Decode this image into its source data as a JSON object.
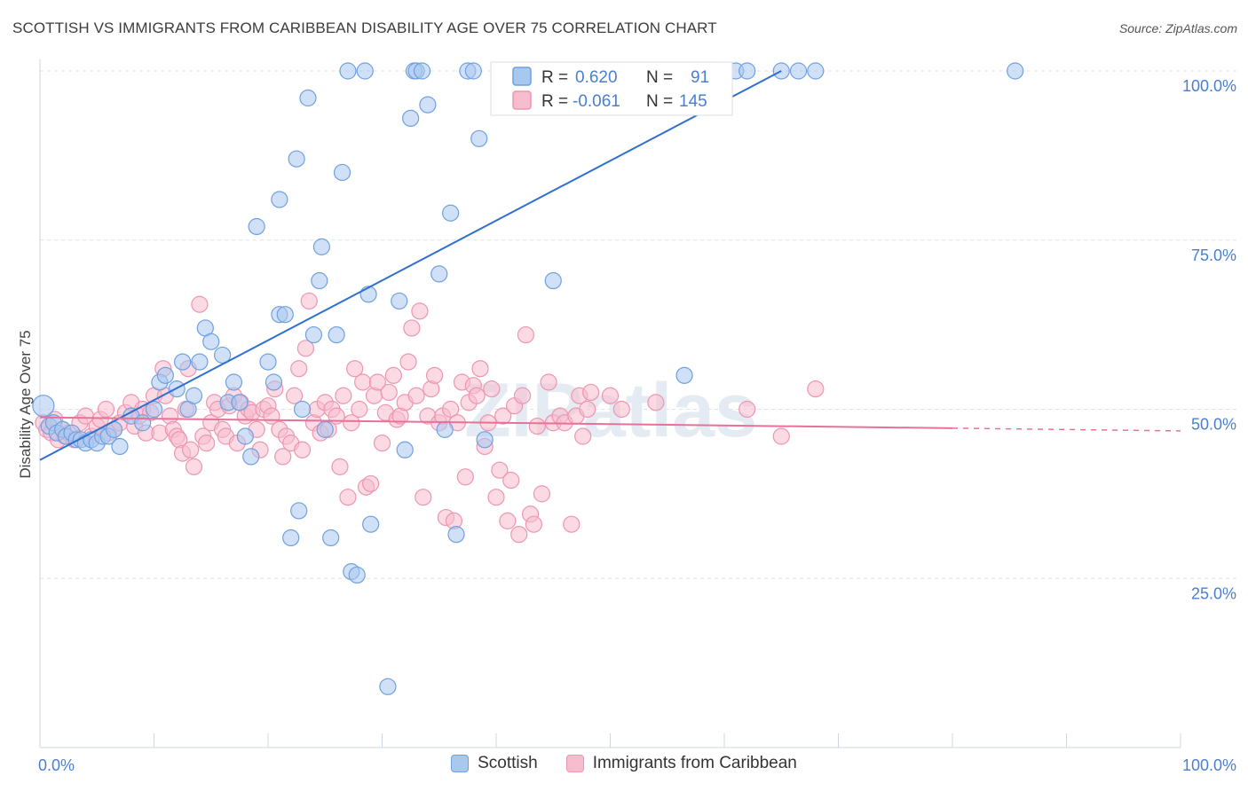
{
  "header": {
    "title": "SCOTTISH VS IMMIGRANTS FROM CARIBBEAN DISABILITY AGE OVER 75 CORRELATION CHART",
    "source": "Source: ZipAtlas.com"
  },
  "watermark": "ZIPatlas",
  "stats": [
    {
      "r_label": "R =",
      "r_value": "0.620",
      "n_label": "N =",
      "n_value": "91"
    },
    {
      "r_label": "R =",
      "r_value": "-0.061",
      "n_label": "N =",
      "n_value": "145"
    }
  ],
  "colors": {
    "scottish_fill": "#a9c8f0",
    "scottish_stroke": "#6fa0e0",
    "scottish_line": "#2f6fcf",
    "caribbean_fill": "#f7bccd",
    "caribbean_stroke": "#ee95b0",
    "caribbean_line": "#e8719a",
    "tick_text": "#4a7fd0",
    "grid": "#dde2e8"
  },
  "chart_data": {
    "type": "scatter",
    "title": "SCOTTISH VS IMMIGRANTS FROM CARIBBEAN DISABILITY AGE OVER 75 CORRELATION CHART",
    "xlabel": "",
    "ylabel": "Disability Age Over 75",
    "xlim": [
      0,
      100
    ],
    "ylim": [
      0,
      100
    ],
    "x_tick_labels": [
      "0.0%",
      "100.0%"
    ],
    "y_tick_labels": [
      "100.0%",
      "75.0%",
      "50.0%",
      "25.0%"
    ],
    "y_ticks": [
      100,
      75,
      50,
      25
    ],
    "grid": true,
    "legend_position": "bottom",
    "series": [
      {
        "name": "Scottish",
        "r": 0.62,
        "n": 91,
        "trend": {
          "x0": 0,
          "y0": 42.5,
          "x1": 65,
          "y1": 100
        },
        "points": [
          [
            0.3,
            50.5
          ],
          [
            0.8,
            47.5
          ],
          [
            1.2,
            48
          ],
          [
            1.5,
            46.5
          ],
          [
            2,
            47
          ],
          [
            2.3,
            46
          ],
          [
            2.8,
            46.5
          ],
          [
            3.2,
            45.5
          ],
          [
            3.6,
            45.5
          ],
          [
            4,
            45
          ],
          [
            4.5,
            45.5
          ],
          [
            5,
            45
          ],
          [
            5.5,
            46
          ],
          [
            6,
            46
          ],
          [
            6.5,
            47
          ],
          [
            7,
            44.5
          ],
          [
            8,
            49
          ],
          [
            9,
            48
          ],
          [
            10,
            50
          ],
          [
            10.5,
            54
          ],
          [
            11,
            55
          ],
          [
            12,
            53
          ],
          [
            12.5,
            57
          ],
          [
            13,
            50
          ],
          [
            13.5,
            52
          ],
          [
            14,
            57
          ],
          [
            14.5,
            62
          ],
          [
            15,
            60
          ],
          [
            16,
            58
          ],
          [
            16.5,
            51
          ],
          [
            17,
            54
          ],
          [
            17.5,
            51
          ],
          [
            18,
            46
          ],
          [
            18.5,
            43
          ],
          [
            19,
            77
          ],
          [
            20,
            57
          ],
          [
            20.5,
            54
          ],
          [
            21,
            64
          ],
          [
            21.5,
            64
          ],
          [
            21,
            81
          ],
          [
            22,
            31
          ],
          [
            22.5,
            87
          ],
          [
            22.7,
            35
          ],
          [
            23,
            50
          ],
          [
            23.5,
            96
          ],
          [
            24,
            61
          ],
          [
            24.5,
            69
          ],
          [
            24.7,
            74
          ],
          [
            25,
            47
          ],
          [
            25.5,
            31
          ],
          [
            26,
            61
          ],
          [
            26.5,
            85
          ],
          [
            27,
            100
          ],
          [
            27.3,
            26
          ],
          [
            27.8,
            25.5
          ],
          [
            28.5,
            100
          ],
          [
            28.8,
            67
          ],
          [
            29,
            33
          ],
          [
            30.5,
            9
          ],
          [
            31.5,
            66
          ],
          [
            32,
            44
          ],
          [
            32.5,
            93
          ],
          [
            32.8,
            100
          ],
          [
            33,
            100
          ],
          [
            33.5,
            100
          ],
          [
            34,
            95
          ],
          [
            35,
            70
          ],
          [
            35.5,
            47
          ],
          [
            36,
            79
          ],
          [
            36.5,
            31.5
          ],
          [
            37.5,
            100
          ],
          [
            38,
            100
          ],
          [
            38.5,
            90
          ],
          [
            39,
            45.5
          ],
          [
            41,
            100
          ],
          [
            42,
            100
          ],
          [
            44,
            100
          ],
          [
            45,
            69
          ],
          [
            47,
            100
          ],
          [
            48,
            100
          ],
          [
            49,
            100
          ],
          [
            50,
            100
          ],
          [
            51,
            100
          ],
          [
            56.5,
            55
          ],
          [
            58,
            100
          ],
          [
            61,
            100
          ],
          [
            62,
            100
          ],
          [
            65,
            100
          ],
          [
            66.5,
            100
          ],
          [
            68,
            100
          ],
          [
            85.5,
            100
          ]
        ]
      },
      {
        "name": "Immigrants from Caribbean",
        "r": -0.061,
        "n": 145,
        "trend": {
          "x0": 0,
          "y0": 48.8,
          "x1": 80,
          "y1": 47.2,
          "x2": 100,
          "y2": 46.8
        },
        "points": [
          [
            0.3,
            48
          ],
          [
            0.6,
            47
          ],
          [
            1,
            46.5
          ],
          [
            1.3,
            48.5
          ],
          [
            1.6,
            45.5
          ],
          [
            2,
            47
          ],
          [
            2.2,
            46
          ],
          [
            2.5,
            46.5
          ],
          [
            3,
            45.5
          ],
          [
            3.5,
            48
          ],
          [
            4,
            49
          ],
          [
            4.5,
            46
          ],
          [
            5,
            47.5
          ],
          [
            5.3,
            48.5
          ],
          [
            5.8,
            50
          ],
          [
            6,
            46.5
          ],
          [
            6.5,
            47
          ],
          [
            7,
            48
          ],
          [
            7.5,
            49.5
          ],
          [
            8,
            51
          ],
          [
            8.3,
            47.5
          ],
          [
            8.7,
            49
          ],
          [
            9,
            50
          ],
          [
            9.3,
            46.5
          ],
          [
            9.7,
            49.5
          ],
          [
            10,
            52
          ],
          [
            10.5,
            46.5
          ],
          [
            10.8,
            56
          ],
          [
            11,
            52
          ],
          [
            11.4,
            49
          ],
          [
            11.7,
            47
          ],
          [
            12,
            46
          ],
          [
            12.2,
            45.5
          ],
          [
            12.5,
            43.5
          ],
          [
            12.8,
            50
          ],
          [
            13,
            56
          ],
          [
            13.2,
            44
          ],
          [
            13.5,
            41.5
          ],
          [
            14,
            65.5
          ],
          [
            14.3,
            46
          ],
          [
            14.6,
            45
          ],
          [
            15,
            48
          ],
          [
            15.3,
            51
          ],
          [
            15.6,
            50
          ],
          [
            16,
            47
          ],
          [
            16.3,
            46
          ],
          [
            16.6,
            50.5
          ],
          [
            17,
            52
          ],
          [
            17.3,
            45
          ],
          [
            17.6,
            51
          ],
          [
            18,
            49
          ],
          [
            18.3,
            50
          ],
          [
            18.6,
            49.5
          ],
          [
            19,
            47
          ],
          [
            19.3,
            44
          ],
          [
            19.6,
            50
          ],
          [
            20,
            50.5
          ],
          [
            20.3,
            49
          ],
          [
            20.6,
            53
          ],
          [
            21,
            47
          ],
          [
            21.3,
            43
          ],
          [
            21.6,
            46
          ],
          [
            22,
            45
          ],
          [
            22.3,
            52
          ],
          [
            22.7,
            56
          ],
          [
            23,
            44
          ],
          [
            23.3,
            59
          ],
          [
            23.6,
            66
          ],
          [
            24,
            48
          ],
          [
            24.3,
            50
          ],
          [
            24.6,
            46.5
          ],
          [
            25,
            51
          ],
          [
            25.3,
            47
          ],
          [
            25.6,
            50
          ],
          [
            26,
            49
          ],
          [
            26.3,
            41.5
          ],
          [
            26.6,
            52
          ],
          [
            27,
            37
          ],
          [
            27.3,
            48
          ],
          [
            27.6,
            56
          ],
          [
            28,
            50
          ],
          [
            28.3,
            54
          ],
          [
            28.6,
            38.5
          ],
          [
            29,
            39
          ],
          [
            29.3,
            52
          ],
          [
            29.6,
            54
          ],
          [
            30,
            45
          ],
          [
            30.3,
            49.5
          ],
          [
            30.6,
            52.5
          ],
          [
            31,
            55
          ],
          [
            31.3,
            48.5
          ],
          [
            31.6,
            49
          ],
          [
            32,
            51
          ],
          [
            32.3,
            57
          ],
          [
            32.6,
            62
          ],
          [
            33,
            52
          ],
          [
            33.3,
            64.5
          ],
          [
            33.6,
            37
          ],
          [
            34,
            49
          ],
          [
            34.3,
            53
          ],
          [
            34.6,
            55
          ],
          [
            35,
            48
          ],
          [
            35.3,
            49
          ],
          [
            35.6,
            34
          ],
          [
            36,
            50
          ],
          [
            36.3,
            33.5
          ],
          [
            36.6,
            48
          ],
          [
            37,
            54
          ],
          [
            37.3,
            40
          ],
          [
            37.6,
            51
          ],
          [
            38,
            53.5
          ],
          [
            38.3,
            52
          ],
          [
            38.6,
            56
          ],
          [
            39,
            44.5
          ],
          [
            39.3,
            48
          ],
          [
            39.6,
            53
          ],
          [
            40,
            37
          ],
          [
            40.3,
            41
          ],
          [
            40.6,
            49
          ],
          [
            41,
            33.5
          ],
          [
            41.3,
            39.5
          ],
          [
            41.6,
            50.5
          ],
          [
            42,
            31.5
          ],
          [
            42.3,
            52
          ],
          [
            42.6,
            61
          ],
          [
            43,
            34.5
          ],
          [
            43.3,
            33
          ],
          [
            43.6,
            47.5
          ],
          [
            44,
            37.5
          ],
          [
            44.6,
            54
          ],
          [
            45,
            48
          ],
          [
            45.6,
            49
          ],
          [
            46,
            48
          ],
          [
            46.6,
            33
          ],
          [
            47,
            49
          ],
          [
            47.3,
            52
          ],
          [
            47.6,
            46
          ],
          [
            48,
            50
          ],
          [
            48.3,
            52.5
          ],
          [
            50,
            52
          ],
          [
            51,
            50
          ],
          [
            54,
            51
          ],
          [
            62,
            50
          ],
          [
            65,
            46
          ],
          [
            68,
            53
          ]
        ]
      }
    ]
  },
  "legend": [
    {
      "label": "Scottish"
    },
    {
      "label": "Immigrants from Caribbean"
    }
  ]
}
